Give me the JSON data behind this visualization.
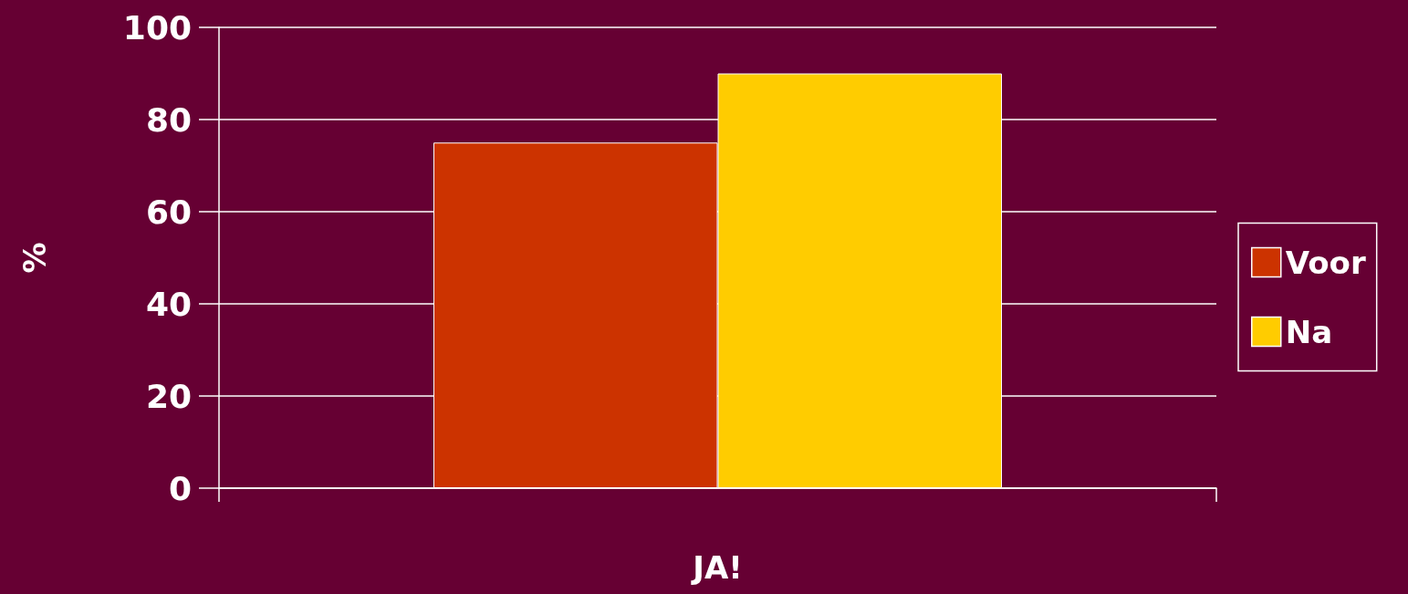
{
  "chart_data": {
    "type": "bar",
    "categories": [
      "JA!"
    ],
    "ylabel": "%",
    "series": [
      {
        "name": "Voor",
        "color": "#cc3300",
        "values": [
          75
        ]
      },
      {
        "name": "Na",
        "color": "#ffcc00",
        "values": [
          90
        ]
      }
    ],
    "ylim": [
      0,
      100
    ],
    "yticks": [
      0,
      20,
      40,
      60,
      80,
      100
    ],
    "grid": "y",
    "legend": "right"
  }
}
